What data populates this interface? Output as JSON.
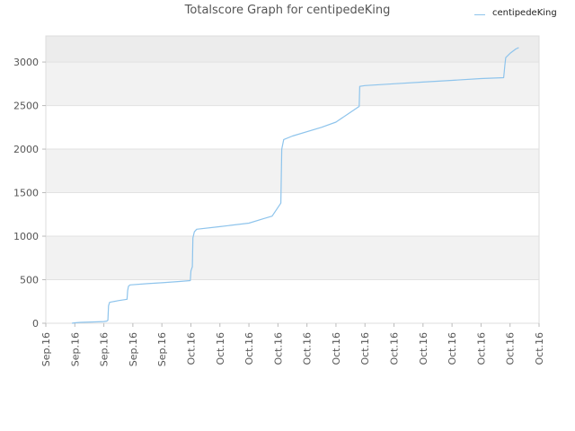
{
  "chart_data": {
    "type": "line",
    "title": "Totalscore Graph for centipedeKing",
    "xlabel": "",
    "ylabel": "",
    "ylim": [
      0,
      3300
    ],
    "yticks": [
      0,
      500,
      1000,
      1500,
      2000,
      2500,
      3000
    ],
    "xtick_labels": [
      "Sep.16",
      "Sep.16",
      "Sep.16",
      "Sep.16",
      "Sep.16",
      "Oct.16",
      "Oct.16",
      "Oct.16",
      "Oct.16",
      "Oct.16",
      "Oct.16",
      "Oct.16",
      "Oct.16",
      "Oct.16",
      "Oct.16",
      "Oct.16",
      "Oct.16",
      "Oct.16"
    ],
    "grid": true,
    "legend_position": "top-right",
    "series_color": "#8ec4ec",
    "series": [
      {
        "name": "centipedeKing",
        "points": [
          [
            0.9,
            0
          ],
          [
            1.0,
            5
          ],
          [
            1.2,
            10
          ],
          [
            1.7,
            15
          ],
          [
            2.0,
            20
          ],
          [
            2.1,
            25
          ],
          [
            2.14,
            35
          ],
          [
            2.16,
            200
          ],
          [
            2.2,
            240
          ],
          [
            2.5,
            260
          ],
          [
            2.8,
            275
          ],
          [
            2.82,
            375
          ],
          [
            2.85,
            425
          ],
          [
            2.9,
            440
          ],
          [
            3.5,
            455
          ],
          [
            4.0,
            465
          ],
          [
            4.6,
            480
          ],
          [
            4.98,
            490
          ],
          [
            5.0,
            600
          ],
          [
            5.05,
            650
          ],
          [
            5.07,
            980
          ],
          [
            5.12,
            1050
          ],
          [
            5.2,
            1080
          ],
          [
            6.0,
            1110
          ],
          [
            7.0,
            1150
          ],
          [
            7.5,
            1200
          ],
          [
            7.8,
            1230
          ],
          [
            8.1,
            1380
          ],
          [
            8.13,
            2000
          ],
          [
            8.2,
            2110
          ],
          [
            8.5,
            2150
          ],
          [
            9.5,
            2250
          ],
          [
            10.0,
            2310
          ],
          [
            10.8,
            2490
          ],
          [
            10.82,
            2720
          ],
          [
            11.0,
            2730
          ],
          [
            11.5,
            2740
          ],
          [
            12.0,
            2750
          ],
          [
            13.0,
            2770
          ],
          [
            14.0,
            2790
          ],
          [
            15.0,
            2810
          ],
          [
            15.78,
            2820
          ],
          [
            15.82,
            2960
          ],
          [
            15.85,
            3050
          ],
          [
            16.0,
            3100
          ],
          [
            16.2,
            3150
          ],
          [
            16.3,
            3165
          ]
        ]
      }
    ]
  }
}
